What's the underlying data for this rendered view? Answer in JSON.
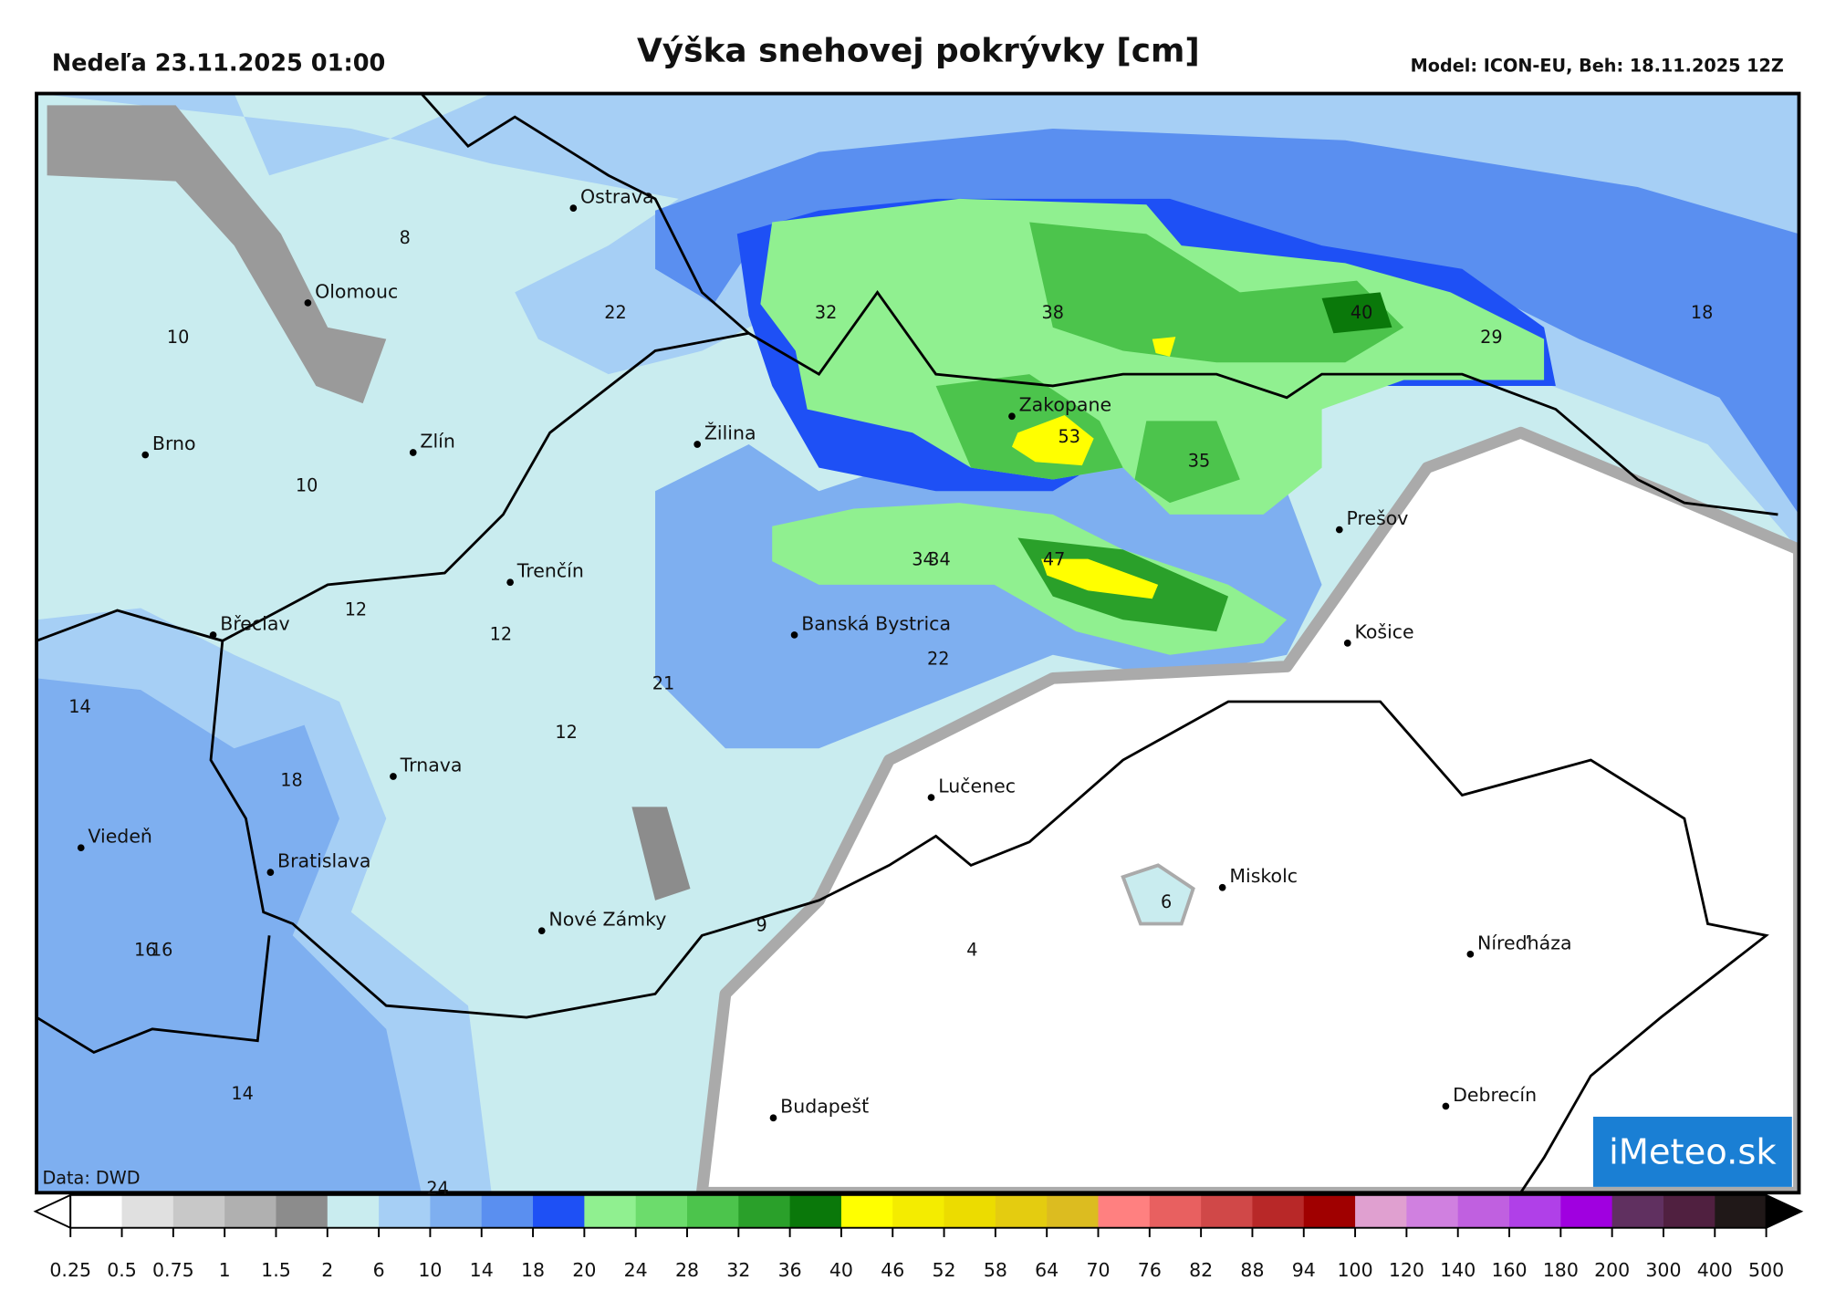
{
  "header": {
    "title": "Výška snehovej pokrývky [cm]",
    "date": "Nedeľa 23.11.2025 01:00",
    "model": "Model: ICON-EU, Beh: 18.11.2025 12Z"
  },
  "source": "Data: DWD",
  "logo": "iMeteo.sk",
  "cities": [
    "Ostrava",
    "Olomouc",
    "Brno",
    "Zlín",
    "Žilina",
    "Zakopane",
    "Trenčín",
    "Prešov",
    "Břeclav",
    "Banská Bystrica",
    "Košice",
    "Trnava",
    "Lučenec",
    "Viedeň",
    "Bratislava",
    "Miskolc",
    "Nové Zámky",
    "Níreďháza",
    "Budapešť",
    "Debrecín"
  ],
  "map_values": [
    8,
    10,
    22,
    32,
    38,
    40,
    18,
    29,
    10,
    53,
    35,
    34,
    34,
    47,
    12,
    12,
    21,
    22,
    12,
    14,
    18,
    16,
    16,
    14,
    6,
    9,
    4,
    24
  ],
  "colorbar": {
    "ticks": [
      0.25,
      0.5,
      0.75,
      1,
      1.5,
      2,
      6,
      10,
      14,
      18,
      20,
      24,
      28,
      32,
      36,
      40,
      46,
      52,
      58,
      64,
      70,
      76,
      82,
      88,
      94,
      100,
      120,
      140,
      160,
      180,
      200,
      300,
      400,
      500
    ],
    "colors": [
      "#ffffff",
      "#e0e0e0",
      "#c8c8c8",
      "#b0b0b0",
      "#8c8c8c",
      "#c9ecef",
      "#a6cff5",
      "#7eaff0",
      "#5a8ff0",
      "#1e50f5",
      "#90f090",
      "#6cdc6c",
      "#4cc44c",
      "#2aa02a",
      "#0a780a",
      "#ffff00",
      "#f4ec00",
      "#ecdc00",
      "#e4cc10",
      "#dcbc20",
      "#ff8080",
      "#e86060",
      "#d04848",
      "#b82828",
      "#a00000",
      "#e0a0d0",
      "#d080e0",
      "#c060e0",
      "#b040e8",
      "#a000e0",
      "#603060",
      "#502040",
      "#201818"
    ],
    "under_color": "#ffffff",
    "over_color": "#000000"
  }
}
